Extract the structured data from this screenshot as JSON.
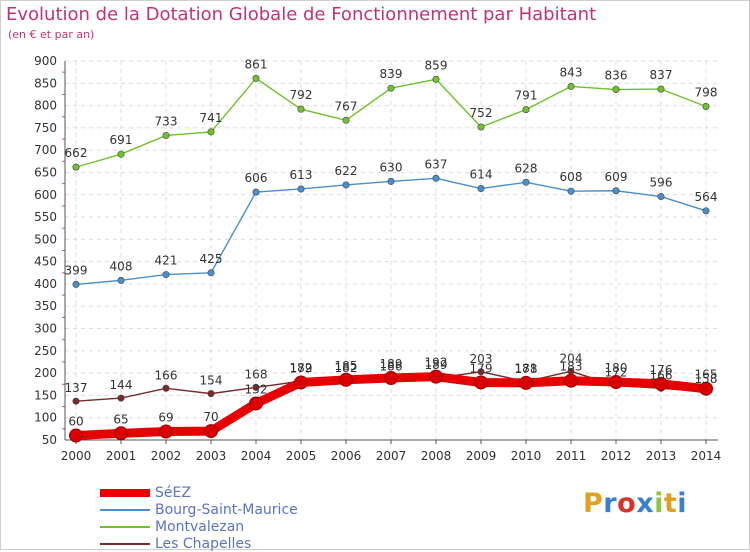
{
  "header": {
    "title": "Evolution de la Dotation Globale de Fonctionnement par Habitant",
    "subtitle": "(en € et par an)"
  },
  "chart_data": {
    "type": "line",
    "title": "Evolution de la Dotation Globale de Fonctionnement par Habitant",
    "subtitle": "(en € et par an)",
    "xlabel": "",
    "ylabel": "",
    "x": [
      2000,
      2001,
      2002,
      2003,
      2004,
      2005,
      2006,
      2007,
      2008,
      2009,
      2010,
      2011,
      2012,
      2013,
      2014
    ],
    "ylim": [
      50,
      900
    ],
    "yticks": [
      50,
      100,
      150,
      200,
      250,
      300,
      350,
      400,
      450,
      500,
      550,
      600,
      650,
      700,
      750,
      800,
      850,
      900
    ],
    "grid": true,
    "legend": "bottom-left",
    "series": [
      {
        "name": "Les Chapelles",
        "color": "#7a2a2a",
        "values": [
          137,
          144,
          166,
          154,
          168,
          182,
          182,
          186,
          189,
          203,
          181,
          204,
          172,
          166,
          158
        ]
      },
      {
        "name": "Montvalezan",
        "color": "#6fc22c",
        "values": [
          662,
          691,
          733,
          741,
          861,
          792,
          767,
          839,
          859,
          752,
          791,
          843,
          836,
          837,
          798
        ]
      },
      {
        "name": "Bourg-Saint-Maurice",
        "color": "#4a8fd0",
        "values": [
          399,
          408,
          421,
          425,
          606,
          613,
          622,
          630,
          637,
          614,
          628,
          608,
          609,
          596,
          564
        ]
      },
      {
        "name": "SéEZ",
        "color": "#e60000",
        "values": [
          60,
          65,
          69,
          70,
          132,
          179,
          185,
          189,
          192,
          179,
          178,
          183,
          180,
          176,
          165
        ]
      }
    ]
  },
  "legend": {
    "items": [
      {
        "label": "SéEZ",
        "color": "#e60000"
      },
      {
        "label": "Bourg-Saint-Maurice",
        "color": "#4a8fd0"
      },
      {
        "label": "Montvalezan",
        "color": "#6fc22c"
      },
      {
        "label": "Les Chapelles",
        "color": "#7a2a2a"
      }
    ]
  },
  "logo": {
    "letters": [
      "P",
      "r",
      "o",
      "x",
      "i",
      "t",
      "i"
    ],
    "colors": [
      "#e0a020",
      "#3a7fd0",
      "#d8322a",
      "#3a7fd0",
      "#8cc63f",
      "#e0a020",
      "#3a7fd0"
    ]
  }
}
